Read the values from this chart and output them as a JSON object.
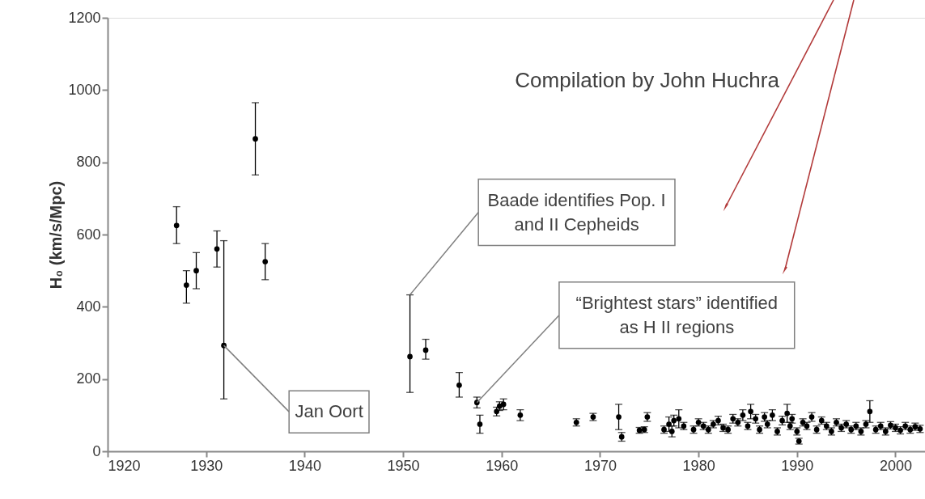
{
  "chart_data": {
    "type": "scatter",
    "ylabel": "H₀ (km/s/Mpc)",
    "xlim": [
      1920,
      2003
    ],
    "xticks": [
      1920,
      1930,
      1940,
      1950,
      1960,
      1970,
      1980,
      1990,
      2000
    ],
    "ylim": [
      0,
      1200
    ],
    "yticks": [
      0,
      200,
      400,
      600,
      800,
      1000,
      1200
    ],
    "grid": false,
    "marker": "circle",
    "series": [
      {
        "color": "#000000",
        "x": [
          1927.0,
          1928.0,
          1929.0,
          1931.1,
          1931.8,
          1935.0,
          1936.0,
          1950.7,
          1952.3,
          1955.7,
          1957.5,
          1957.8,
          1959.5,
          1959.8,
          1960.2,
          1961.9,
          1967.6,
          1969.3,
          1971.9,
          1972.2,
          1974.0,
          1974.5,
          1974.8,
          1976.5,
          1977.0,
          1977.3,
          1977.5,
          1978.0,
          1978.5,
          1979.5,
          1980.0,
          1980.5,
          1981.0,
          1981.5,
          1982.0,
          1982.5,
          1983.0,
          1983.5,
          1984.0,
          1984.5,
          1985.0,
          1985.3,
          1985.8,
          1986.2,
          1986.7,
          1987.0,
          1987.5,
          1988.0,
          1988.5,
          1989.0,
          1989.3,
          1989.5,
          1990.0,
          1990.2,
          1990.6,
          1991.0,
          1991.5,
          1992.0,
          1992.5,
          1993.0,
          1993.5,
          1994.0,
          1994.5,
          1995.0,
          1995.5,
          1996.0,
          1996.5,
          1997.0,
          1997.4,
          1998.0,
          1998.5,
          1999.0,
          1999.5,
          2000.0,
          2000.5,
          2001.0,
          2001.5,
          2002.0,
          2002.5
        ],
        "values": [
          625,
          460,
          500,
          560,
          293,
          865,
          525,
          262,
          280,
          183,
          135,
          75,
          110,
          125,
          130,
          100,
          80,
          95,
          95,
          40,
          58,
          60,
          95,
          60,
          75,
          55,
          85,
          90,
          70,
          60,
          80,
          70,
          60,
          75,
          85,
          65,
          60,
          90,
          80,
          100,
          70,
          110,
          90,
          60,
          95,
          75,
          100,
          55,
          85,
          105,
          70,
          90,
          55,
          28,
          80,
          70,
          95,
          60,
          85,
          70,
          55,
          80,
          65,
          75,
          60,
          70,
          55,
          75,
          110,
          60,
          70,
          55,
          72,
          65,
          58,
          70,
          60,
          68,
          62
        ],
        "errors": [
          [
            575,
            677
          ],
          [
            410,
            500
          ],
          [
            450,
            550
          ],
          [
            510,
            610
          ],
          [
            145,
            583
          ],
          [
            765,
            965
          ],
          [
            475,
            575
          ],
          [
            163,
            433
          ],
          [
            255,
            310
          ],
          [
            150,
            218
          ],
          15,
          25,
          12,
          12,
          15,
          15,
          10,
          10,
          35,
          12,
          8,
          8,
          12,
          10,
          20,
          15,
          15,
          25,
          10,
          10,
          10,
          10,
          10,
          10,
          12,
          10,
          10,
          12,
          10,
          15,
          10,
          20,
          12,
          10,
          12,
          10,
          15,
          10,
          12,
          25,
          10,
          12,
          10,
          8,
          10,
          10,
          12,
          10,
          10,
          10,
          10,
          10,
          10,
          10,
          10,
          10,
          10,
          10,
          30,
          10,
          10,
          10,
          10,
          10,
          10,
          10,
          10,
          10,
          10
        ]
      }
    ],
    "annotations": [
      "Compilation by John Huchra",
      {
        "text": "Jan Oort",
        "x": 1931.8,
        "y": 293
      },
      {
        "text": "Baade identifies Pop. I and II Cepheids",
        "x": 1950.7,
        "y": 433
      },
      {
        "text": "“Brightest stars” identified as H II regions",
        "x": 1957.5,
        "y": 135
      }
    ]
  }
}
